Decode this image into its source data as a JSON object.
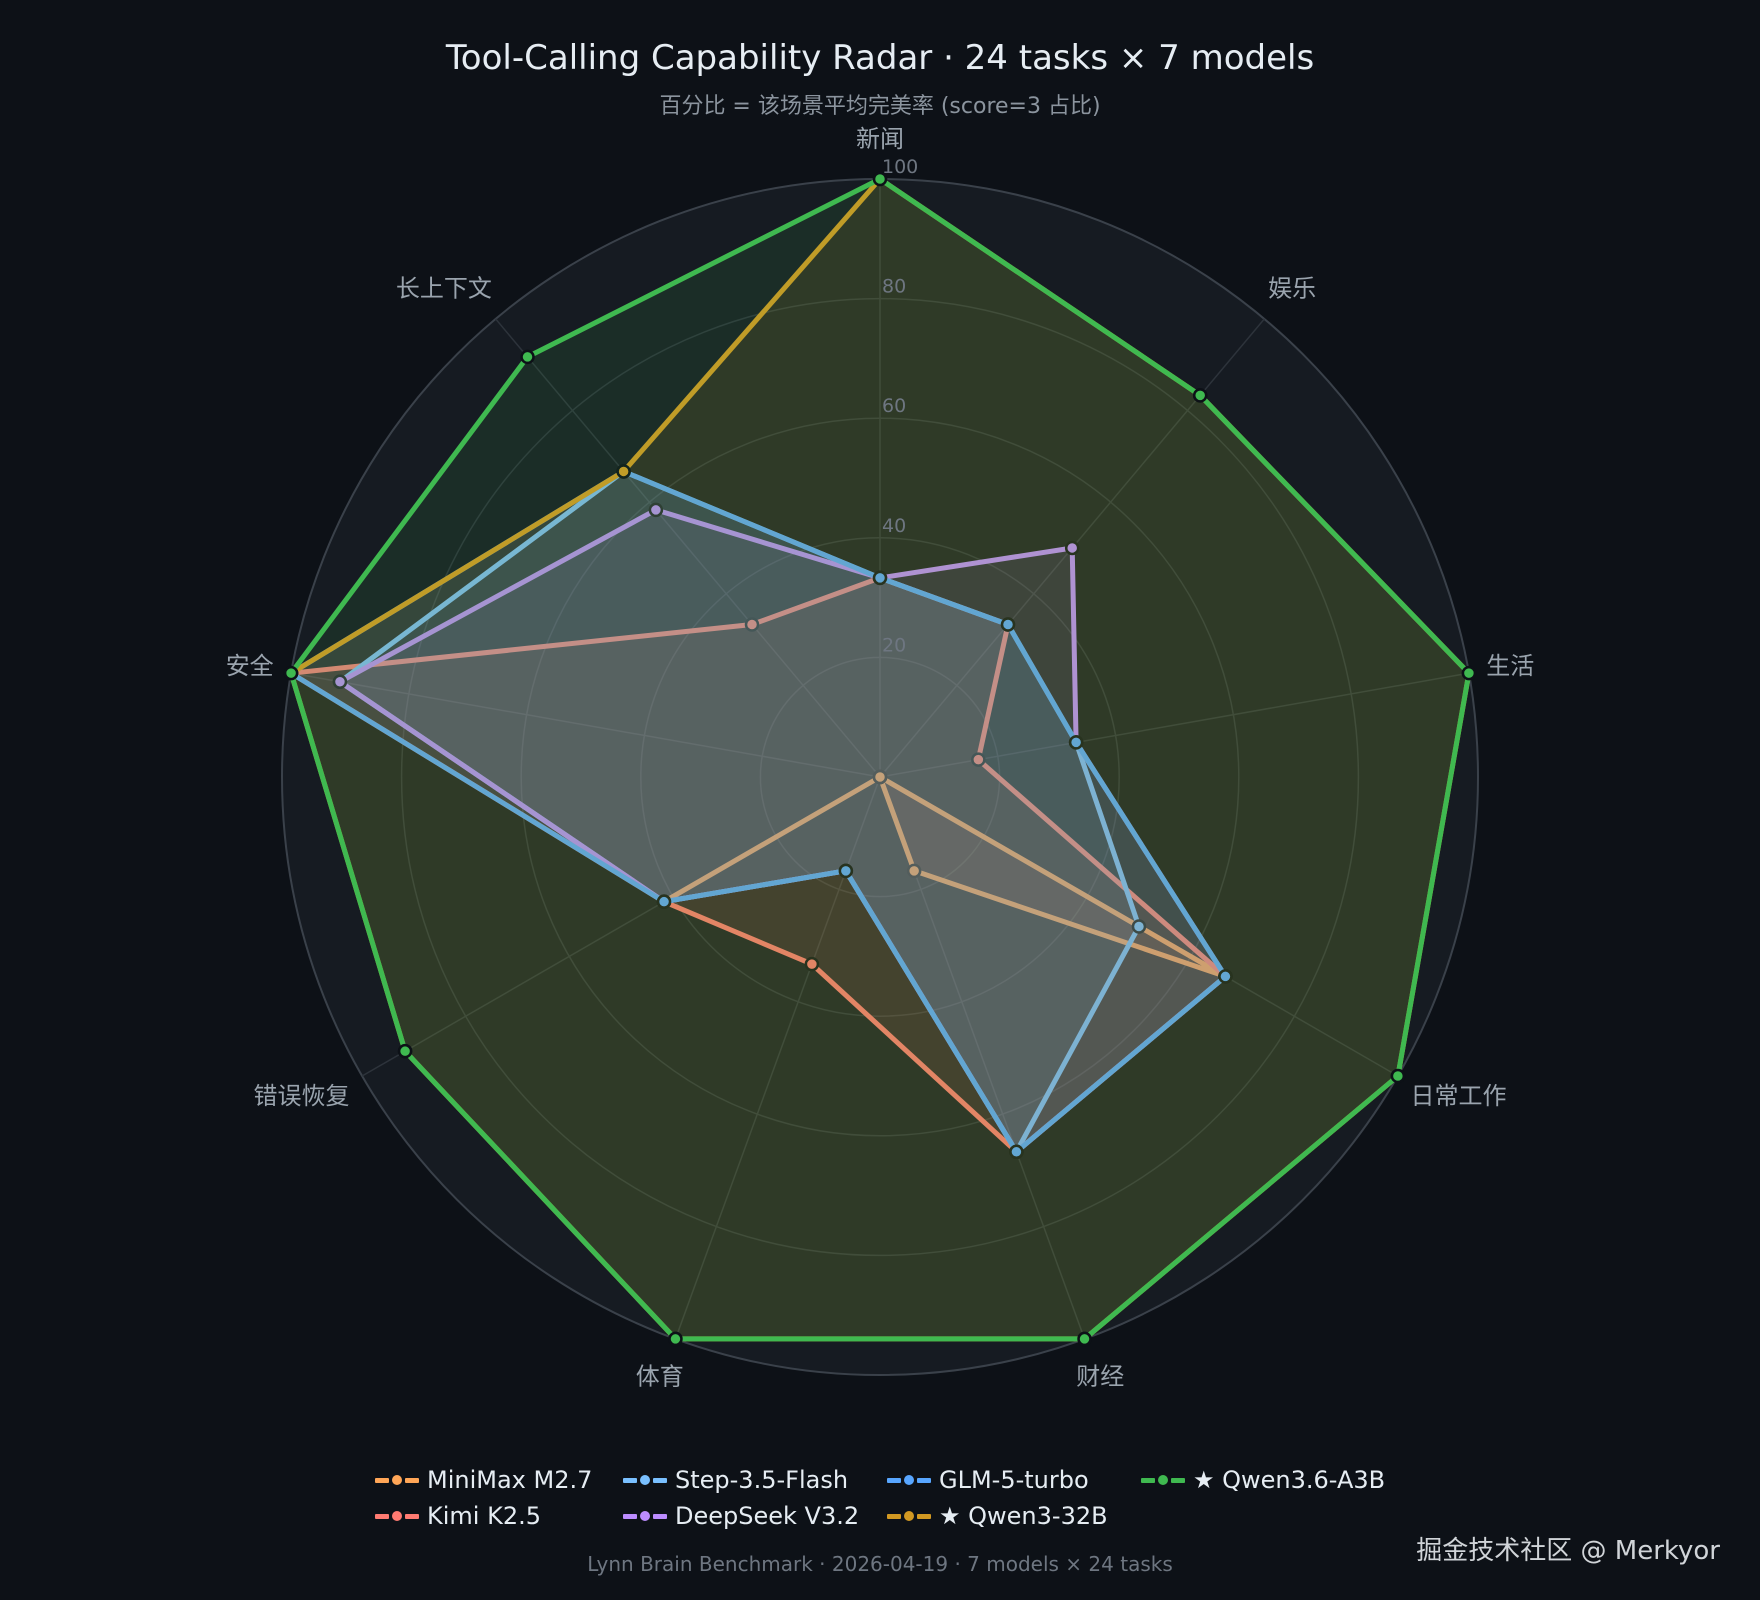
{
  "header": {
    "title": "Tool-Calling Capability Radar   ·   24 tasks × 7 models",
    "subtitle": "百分比 = 该场景平均完美率 (score=3 占比)"
  },
  "footer": {
    "text": "Lynn Brain Benchmark  ·  2026-04-19  ·  7 models × 24 tasks"
  },
  "watermark": "掘金技术社区 @ Merkyor",
  "theme": {
    "background": "#0d1117",
    "polar_background": "#161b22",
    "grid": "#30363d"
  },
  "chart_data": {
    "type": "radar",
    "title": "Tool-Calling Capability Radar · 24 tasks × 7 models",
    "subtitle": "百分比 = 该场景平均完美率 (score=3 占比)",
    "axes": [
      "新闻",
      "娱乐",
      "生活",
      "日常工作",
      "财经",
      "体育",
      "错误恢复",
      "安全",
      "长上下文"
    ],
    "rlim": [
      0,
      100
    ],
    "rticks": [
      20,
      40,
      60,
      80,
      100
    ],
    "legend_position": "bottom",
    "series": [
      {
        "name": "MiniMax M2.7",
        "color": "#ffa657",
        "values": [
          0,
          0,
          0,
          66.7,
          16.7,
          0,
          41.7,
          0,
          0
        ]
      },
      {
        "name": "Kimi K2.5",
        "color": "#ff7b72",
        "values": [
          33.3,
          33.3,
          16.7,
          66.7,
          66.7,
          33.3,
          41.7,
          100,
          33.3
        ]
      },
      {
        "name": "Step-3.5-Flash",
        "color": "#79c0ff",
        "values": [
          33.3,
          33.3,
          33.3,
          50,
          66.7,
          16.7,
          41.7,
          91.7,
          66.7
        ]
      },
      {
        "name": "DeepSeek V3.2",
        "color": "#bc8cff",
        "values": [
          33.3,
          50,
          33.3,
          66.7,
          66.7,
          16.7,
          41.7,
          91.7,
          58.3
        ]
      },
      {
        "name": "GLM-5-turbo",
        "color": "#58a6ff",
        "values": [
          33.3,
          33.3,
          33.3,
          66.7,
          66.7,
          16.7,
          41.7,
          100,
          66.7
        ]
      },
      {
        "name": "★ Qwen3-32B",
        "color": "#d29922",
        "values": [
          100,
          83.3,
          100,
          100,
          100,
          100,
          91.7,
          100,
          66.7
        ]
      },
      {
        "name": "★ Qwen3.6-A3B",
        "color": "#3fb950",
        "values": [
          100,
          83.3,
          100,
          100,
          100,
          100,
          91.7,
          100,
          91.7
        ]
      }
    ]
  },
  "legend": {
    "rows": [
      [
        {
          "label": "MiniMax M2.7",
          "color": "#ffa657"
        },
        {
          "label": "Step-3.5-Flash",
          "color": "#79c0ff"
        },
        {
          "label": "GLM-5-turbo",
          "color": "#58a6ff"
        },
        {
          "label": "★ Qwen3.6-A3B",
          "color": "#3fb950"
        }
      ],
      [
        {
          "label": "Kimi K2.5",
          "color": "#ff7b72"
        },
        {
          "label": "DeepSeek V3.2",
          "color": "#bc8cff"
        },
        {
          "label": "★ Qwen3-32B",
          "color": "#d29922"
        }
      ]
    ]
  }
}
